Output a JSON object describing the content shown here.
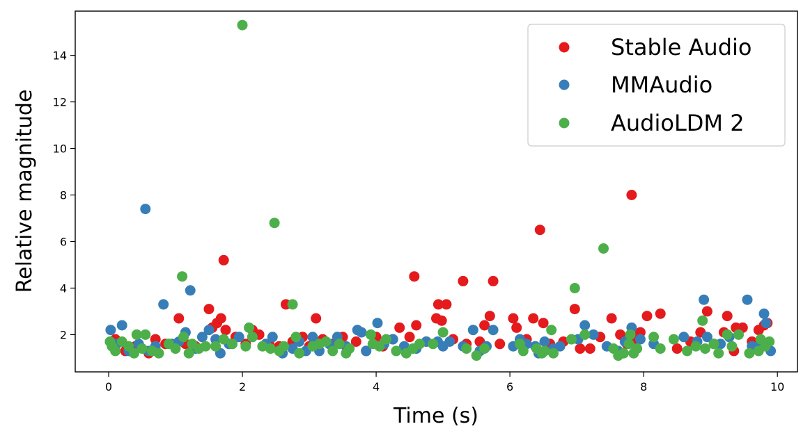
{
  "chart_data": {
    "type": "scatter",
    "title": "",
    "xlabel": "Time (s)",
    "ylabel": "Relative magnitude",
    "xlim": [
      -0.5,
      10.3
    ],
    "ylim": [
      0.4,
      15.9
    ],
    "xticks": [
      0,
      2,
      4,
      6,
      8,
      10
    ],
    "yticks": [
      2,
      4,
      6,
      8,
      10,
      12,
      14
    ],
    "grid": false,
    "legend_position": "top-right",
    "series": [
      {
        "name": "Stable Audio",
        "color": "#e41a1c",
        "points": [
          [
            0.1,
            1.8
          ],
          [
            0.25,
            1.3
          ],
          [
            0.4,
            1.5
          ],
          [
            0.6,
            1.2
          ],
          [
            0.7,
            1.8
          ],
          [
            0.85,
            1.6
          ],
          [
            1.05,
            2.7
          ],
          [
            1.15,
            1.6
          ],
          [
            1.3,
            1.5
          ],
          [
            1.5,
            3.1
          ],
          [
            1.55,
            2.3
          ],
          [
            1.62,
            2.5
          ],
          [
            1.68,
            2.7
          ],
          [
            1.72,
            5.2
          ],
          [
            1.75,
            2.2
          ],
          [
            1.9,
            1.9
          ],
          [
            2.05,
            1.6
          ],
          [
            2.15,
            2.2
          ],
          [
            2.25,
            2.0
          ],
          [
            2.4,
            1.6
          ],
          [
            2.55,
            1.5
          ],
          [
            2.65,
            3.3
          ],
          [
            2.75,
            1.7
          ],
          [
            2.9,
            1.9
          ],
          [
            3.0,
            1.5
          ],
          [
            3.1,
            2.7
          ],
          [
            3.2,
            1.8
          ],
          [
            3.35,
            1.6
          ],
          [
            3.5,
            1.9
          ],
          [
            3.7,
            1.7
          ],
          [
            3.85,
            1.3
          ],
          [
            4.0,
            1.9
          ],
          [
            4.1,
            1.5
          ],
          [
            4.25,
            1.8
          ],
          [
            4.35,
            2.3
          ],
          [
            4.5,
            1.9
          ],
          [
            4.57,
            4.5
          ],
          [
            4.6,
            2.4
          ],
          [
            4.75,
            1.7
          ],
          [
            4.9,
            2.7
          ],
          [
            4.93,
            3.3
          ],
          [
            4.98,
            2.6
          ],
          [
            5.05,
            3.3
          ],
          [
            5.15,
            1.8
          ],
          [
            5.3,
            4.3
          ],
          [
            5.35,
            1.6
          ],
          [
            5.55,
            1.7
          ],
          [
            5.62,
            2.4
          ],
          [
            5.7,
            2.8
          ],
          [
            5.75,
            4.3
          ],
          [
            5.85,
            1.6
          ],
          [
            6.05,
            2.7
          ],
          [
            6.1,
            2.3
          ],
          [
            6.25,
            1.8
          ],
          [
            6.35,
            2.7
          ],
          [
            6.45,
            6.5
          ],
          [
            6.5,
            2.5
          ],
          [
            6.6,
            1.6
          ],
          [
            6.8,
            1.7
          ],
          [
            6.97,
            3.1
          ],
          [
            7.05,
            1.4
          ],
          [
            7.2,
            1.4
          ],
          [
            7.35,
            1.9
          ],
          [
            7.52,
            2.7
          ],
          [
            7.65,
            2.0
          ],
          [
            7.75,
            1.6
          ],
          [
            7.82,
            8.0
          ],
          [
            7.9,
            1.8
          ],
          [
            7.95,
            2.1
          ],
          [
            8.05,
            2.8
          ],
          [
            8.25,
            2.9
          ],
          [
            8.5,
            1.4
          ],
          [
            8.7,
            1.7
          ],
          [
            8.85,
            2.1
          ],
          [
            8.95,
            3.0
          ],
          [
            9.05,
            1.6
          ],
          [
            9.2,
            2.1
          ],
          [
            9.25,
            2.8
          ],
          [
            9.35,
            1.3
          ],
          [
            9.38,
            2.3
          ],
          [
            9.48,
            2.3
          ],
          [
            9.62,
            1.7
          ],
          [
            9.72,
            2.2
          ],
          [
            9.8,
            2.4
          ],
          [
            9.85,
            2.5
          ]
        ]
      },
      {
        "name": "MMAudio",
        "color": "#377eb8",
        "points": [
          [
            0.03,
            2.2
          ],
          [
            0.12,
            1.6
          ],
          [
            0.2,
            2.4
          ],
          [
            0.3,
            1.3
          ],
          [
            0.45,
            1.6
          ],
          [
            0.55,
            7.4
          ],
          [
            0.6,
            1.3
          ],
          [
            0.7,
            1.5
          ],
          [
            0.82,
            3.3
          ],
          [
            0.95,
            1.6
          ],
          [
            1.05,
            1.7
          ],
          [
            1.15,
            2.1
          ],
          [
            1.22,
            3.9
          ],
          [
            1.3,
            1.4
          ],
          [
            1.4,
            1.9
          ],
          [
            1.5,
            2.2
          ],
          [
            1.6,
            1.8
          ],
          [
            1.67,
            1.2
          ],
          [
            1.8,
            1.6
          ],
          [
            1.95,
            1.9
          ],
          [
            2.15,
            1.9
          ],
          [
            2.35,
            1.6
          ],
          [
            2.45,
            1.9
          ],
          [
            2.6,
            1.2
          ],
          [
            2.75,
            1.4
          ],
          [
            2.85,
            1.7
          ],
          [
            2.95,
            1.3
          ],
          [
            3.05,
            1.9
          ],
          [
            3.15,
            1.3
          ],
          [
            3.3,
            1.6
          ],
          [
            3.42,
            1.9
          ],
          [
            3.55,
            1.5
          ],
          [
            3.72,
            2.2
          ],
          [
            3.78,
            2.1
          ],
          [
            3.85,
            1.3
          ],
          [
            4.02,
            2.5
          ],
          [
            4.12,
            1.6
          ],
          [
            4.25,
            1.8
          ],
          [
            4.42,
            1.5
          ],
          [
            4.6,
            1.4
          ],
          [
            4.75,
            1.7
          ],
          [
            4.92,
            1.7
          ],
          [
            5.0,
            1.5
          ],
          [
            5.1,
            1.7
          ],
          [
            5.3,
            1.5
          ],
          [
            5.45,
            2.2
          ],
          [
            5.55,
            1.3
          ],
          [
            5.65,
            1.5
          ],
          [
            5.75,
            2.2
          ],
          [
            6.05,
            1.5
          ],
          [
            6.15,
            1.8
          ],
          [
            6.25,
            1.6
          ],
          [
            6.38,
            1.5
          ],
          [
            6.43,
            1.2
          ],
          [
            6.52,
            1.7
          ],
          [
            6.65,
            1.4
          ],
          [
            6.75,
            1.5
          ],
          [
            7.02,
            1.8
          ],
          [
            7.12,
            2.4
          ],
          [
            7.25,
            2.0
          ],
          [
            7.45,
            1.5
          ],
          [
            7.62,
            1.3
          ],
          [
            7.72,
            1.7
          ],
          [
            7.82,
            2.3
          ],
          [
            7.95,
            1.8
          ],
          [
            8.15,
            1.6
          ],
          [
            8.6,
            1.9
          ],
          [
            8.8,
            1.7
          ],
          [
            8.9,
            3.5
          ],
          [
            8.95,
            1.9
          ],
          [
            9.15,
            1.6
          ],
          [
            9.28,
            1.9
          ],
          [
            9.55,
            3.5
          ],
          [
            9.62,
            1.5
          ],
          [
            9.72,
            1.5
          ],
          [
            9.8,
            2.9
          ],
          [
            9.83,
            2.5
          ],
          [
            9.9,
            1.3
          ]
        ]
      },
      {
        "name": "AudioLDM 2",
        "color": "#4daf4a",
        "points": [
          [
            0.02,
            1.7
          ],
          [
            0.05,
            1.5
          ],
          [
            0.1,
            1.3
          ],
          [
            0.2,
            1.7
          ],
          [
            0.3,
            1.5
          ],
          [
            0.38,
            1.2
          ],
          [
            0.42,
            2.0
          ],
          [
            0.5,
            1.4
          ],
          [
            0.55,
            2.0
          ],
          [
            0.65,
            1.3
          ],
          [
            0.75,
            1.2
          ],
          [
            0.9,
            1.6
          ],
          [
            1.0,
            1.4
          ],
          [
            1.1,
            4.5
          ],
          [
            1.12,
            1.9
          ],
          [
            1.2,
            1.2
          ],
          [
            1.25,
            1.6
          ],
          [
            1.35,
            1.4
          ],
          [
            1.45,
            1.5
          ],
          [
            1.6,
            1.5
          ],
          [
            1.72,
            1.8
          ],
          [
            1.85,
            1.6
          ],
          [
            2.0,
            15.3
          ],
          [
            2.05,
            1.5
          ],
          [
            2.1,
            2.3
          ],
          [
            2.15,
            1.9
          ],
          [
            2.3,
            1.5
          ],
          [
            2.42,
            1.4
          ],
          [
            2.48,
            6.8
          ],
          [
            2.55,
            1.3
          ],
          [
            2.62,
            1.5
          ],
          [
            2.75,
            3.3
          ],
          [
            2.8,
            1.9
          ],
          [
            2.85,
            1.2
          ],
          [
            3.05,
            1.5
          ],
          [
            3.15,
            1.6
          ],
          [
            3.25,
            1.7
          ],
          [
            3.35,
            1.3
          ],
          [
            3.45,
            1.6
          ],
          [
            3.55,
            1.2
          ],
          [
            3.6,
            1.4
          ],
          [
            3.92,
            2.0
          ],
          [
            3.95,
            1.6
          ],
          [
            4.05,
            1.5
          ],
          [
            4.15,
            1.8
          ],
          [
            4.3,
            1.3
          ],
          [
            4.45,
            1.2
          ],
          [
            4.55,
            1.4
          ],
          [
            4.65,
            1.6
          ],
          [
            4.85,
            1.6
          ],
          [
            5.0,
            2.1
          ],
          [
            5.35,
            1.4
          ],
          [
            5.5,
            1.1
          ],
          [
            5.62,
            1.4
          ],
          [
            6.15,
            1.6
          ],
          [
            6.2,
            1.3
          ],
          [
            6.4,
            1.4
          ],
          [
            6.48,
            1.2
          ],
          [
            6.52,
            1.3
          ],
          [
            6.62,
            2.2
          ],
          [
            6.65,
            1.2
          ],
          [
            6.92,
            1.8
          ],
          [
            6.97,
            4.0
          ],
          [
            7.12,
            2.0
          ],
          [
            7.4,
            5.7
          ],
          [
            7.55,
            1.4
          ],
          [
            7.62,
            1.1
          ],
          [
            7.7,
            1.2
          ],
          [
            7.78,
            1.6
          ],
          [
            7.8,
            2.0
          ],
          [
            7.85,
            1.2
          ],
          [
            7.9,
            1.4
          ],
          [
            8.15,
            1.9
          ],
          [
            8.25,
            1.4
          ],
          [
            8.45,
            1.8
          ],
          [
            8.65,
            1.3
          ],
          [
            8.78,
            1.5
          ],
          [
            8.88,
            2.6
          ],
          [
            8.92,
            1.4
          ],
          [
            9.05,
            1.6
          ],
          [
            9.12,
            1.2
          ],
          [
            9.25,
            2.0
          ],
          [
            9.32,
            1.5
          ],
          [
            9.42,
            2.0
          ],
          [
            9.58,
            1.2
          ],
          [
            9.72,
            1.3
          ],
          [
            9.75,
            1.8
          ],
          [
            9.82,
            1.5
          ],
          [
            9.88,
            1.7
          ]
        ]
      }
    ]
  }
}
